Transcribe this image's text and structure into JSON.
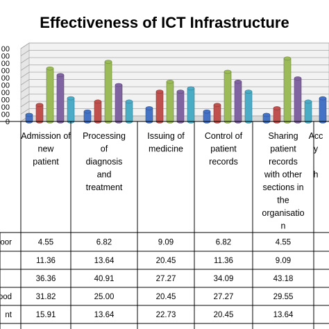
{
  "chart_data": {
    "type": "bar",
    "title": "Effectiveness of ICT Infrastructure",
    "categories": [
      [
        "Admission of",
        "new",
        "patient"
      ],
      [
        "Processing",
        "of",
        "diagnosis",
        "and",
        "treatment"
      ],
      [
        "Issuing of",
        "medicine"
      ],
      [
        "Control of",
        "patient",
        "records"
      ],
      [
        "Sharing",
        "patient",
        "records",
        "with other",
        "sections in",
        "the",
        "organisatio",
        "n"
      ],
      [
        "Acc",
        "y",
        "",
        "h"
      ]
    ],
    "series": [
      {
        "name": "oor",
        "color": "#4472c4",
        "values": [
          4.55,
          6.82,
          9.09,
          6.82,
          4.55,
          null
        ]
      },
      {
        "name": "",
        "color": "#c0504d",
        "values": [
          11.36,
          13.64,
          20.45,
          11.36,
          9.09,
          null
        ]
      },
      {
        "name": "",
        "color": "#9bbb59",
        "values": [
          36.36,
          40.91,
          27.27,
          34.09,
          43.18,
          null
        ]
      },
      {
        "name": "ood",
        "color": "#8064a2",
        "values": [
          31.82,
          25.0,
          20.45,
          27.27,
          29.55,
          null
        ]
      },
      {
        "name": "nt",
        "color": "#4bacc6",
        "values": [
          15.91,
          13.64,
          22.73,
          20.45,
          13.64,
          null
        ]
      }
    ],
    "partial_bars": [
      {
        "series": 0,
        "value": 15.9
      },
      {
        "series": 1,
        "value": 15.9
      }
    ],
    "ylim": [
      0,
      50
    ],
    "y_ticks": [
      "0",
      "00",
      "00",
      "00",
      "00",
      "00",
      "00",
      "00",
      "00",
      "00",
      "00"
    ],
    "grid": true,
    "legend": "table-below"
  }
}
